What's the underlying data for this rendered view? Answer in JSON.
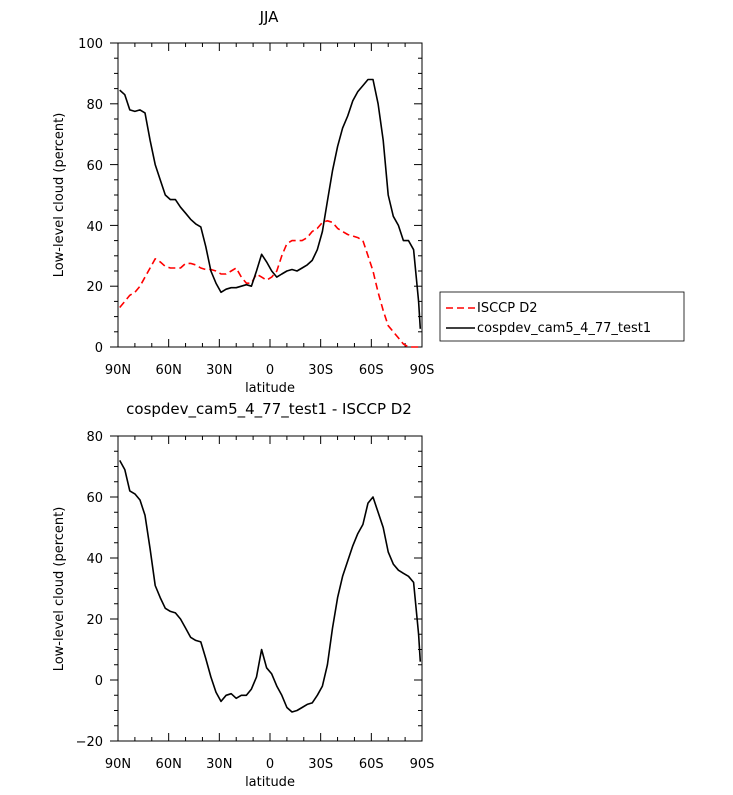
{
  "chart_data": [
    {
      "type": "line",
      "title": "JJA",
      "xlabel": "latitude",
      "ylabel": "Low-level cloud (percent)",
      "xlim": [
        90,
        -90
      ],
      "ylim": [
        0,
        100
      ],
      "xticks": [
        90,
        60,
        30,
        0,
        -30,
        -60,
        -90
      ],
      "xtick_labels": [
        "90N",
        "60N",
        "30N",
        "0",
        "30S",
        "60S",
        "90S"
      ],
      "yticks": [
        0,
        20,
        40,
        60,
        80,
        100
      ],
      "ytick_labels": [
        "0",
        "20",
        "40",
        "60",
        "80",
        "100"
      ],
      "legend_placement": "right",
      "series": [
        {
          "name": "ISCCP D2",
          "color": "#ff0000",
          "dash": "dashed",
          "x": [
            89,
            86,
            83,
            80,
            77,
            74,
            71,
            68,
            65,
            62,
            59,
            56,
            53,
            50,
            47,
            44,
            41,
            38,
            35,
            32,
            29,
            26,
            23,
            20,
            17,
            14,
            11,
            8,
            5,
            2,
            -1,
            -4,
            -7,
            -10,
            -13,
            -16,
            -19,
            -22,
            -25,
            -28,
            -31,
            -34,
            -37,
            -40,
            -43,
            -46,
            -49,
            -52,
            -55,
            -58,
            -61,
            -64,
            -67,
            -70,
            -73,
            -76,
            -79,
            -82,
            -85,
            -88,
            -89
          ],
          "y": [
            13,
            15,
            17,
            18,
            20,
            23,
            26,
            29,
            28,
            26.5,
            26,
            26,
            26,
            27.5,
            27.5,
            27,
            26,
            25.5,
            25.5,
            25,
            24,
            24,
            25,
            26,
            23,
            21,
            21,
            24,
            23,
            22,
            23,
            25,
            30,
            34,
            35,
            35,
            35,
            36,
            38,
            39,
            41,
            41.5,
            41,
            39,
            38,
            37,
            36.5,
            36,
            35,
            30,
            25,
            18,
            12,
            7,
            5,
            3,
            1,
            0,
            0,
            0,
            0
          ]
        },
        {
          "name": "cospdev_cam5_4_77_test1",
          "color": "#000000",
          "dash": "solid",
          "x": [
            89,
            86,
            83,
            80,
            77,
            74,
            71,
            68,
            65,
            62,
            59,
            56,
            53,
            50,
            47,
            44,
            41,
            38,
            35,
            32,
            29,
            26,
            23,
            20,
            17,
            14,
            11,
            8,
            5,
            2,
            -1,
            -4,
            -7,
            -10,
            -13,
            -16,
            -19,
            -22,
            -25,
            -28,
            -31,
            -34,
            -37,
            -40,
            -43,
            -46,
            -49,
            -52,
            -55,
            -58,
            -61,
            -64,
            -67,
            -70,
            -73,
            -76,
            -79,
            -82,
            -85,
            -88,
            -89
          ],
          "y": [
            84.5,
            83,
            78,
            77.5,
            78,
            77,
            68,
            60,
            55,
            50,
            48.5,
            48.5,
            46,
            44,
            42,
            40.5,
            39.5,
            33,
            25,
            21,
            18,
            19,
            19.5,
            19.5,
            20,
            20.5,
            20,
            25,
            30.5,
            28,
            25,
            23,
            24,
            25,
            25.5,
            25,
            26,
            27,
            28.5,
            32,
            38,
            48,
            58,
            66,
            72,
            76,
            81,
            84,
            86,
            88,
            88,
            80,
            68,
            50,
            43,
            40,
            35,
            35,
            32,
            15,
            6
          ]
        }
      ]
    },
    {
      "type": "line",
      "title": "cospdev_cam5_4_77_test1 - ISCCP D2",
      "xlabel": "latitude",
      "ylabel": "Low-level cloud (percent)",
      "xlim": [
        90,
        -90
      ],
      "ylim": [
        -20,
        80
      ],
      "xticks": [
        90,
        60,
        30,
        0,
        -30,
        -60,
        -90
      ],
      "xtick_labels": [
        "90N",
        "60N",
        "30N",
        "0",
        "30S",
        "60S",
        "90S"
      ],
      "yticks": [
        -20,
        0,
        20,
        40,
        60,
        80
      ],
      "ytick_labels": [
        "−20",
        "0",
        "20",
        "40",
        "60",
        "80"
      ],
      "series": [
        {
          "color": "#000000",
          "dash": "solid",
          "x": [
            89,
            86,
            83,
            80,
            77,
            74,
            71,
            68,
            65,
            62,
            59,
            56,
            53,
            50,
            47,
            44,
            41,
            38,
            35,
            32,
            29,
            26,
            23,
            20,
            17,
            14,
            11,
            8,
            5,
            2,
            -1,
            -4,
            -7,
            -10,
            -13,
            -16,
            -19,
            -22,
            -25,
            -28,
            -31,
            -34,
            -37,
            -40,
            -43,
            -46,
            -49,
            -52,
            -55,
            -58,
            -61,
            -64,
            -67,
            -70,
            -73,
            -76,
            -79,
            -82,
            -85,
            -88,
            -89
          ],
          "y": [
            72,
            69,
            62,
            61,
            59,
            54,
            43,
            31,
            27,
            23.5,
            22.5,
            22,
            20,
            17,
            14,
            13,
            12.5,
            7,
            1,
            -4,
            -7,
            -5,
            -4.5,
            -6,
            -5,
            -5,
            -3,
            1,
            10,
            4,
            2,
            -2,
            -5,
            -9,
            -10.5,
            -10,
            -9,
            -8,
            -7.5,
            -5,
            -2,
            5,
            17,
            27,
            34,
            39,
            44,
            48,
            51,
            58,
            60,
            55,
            50,
            42,
            38,
            36,
            35,
            34,
            32,
            15,
            6
          ]
        }
      ]
    }
  ]
}
